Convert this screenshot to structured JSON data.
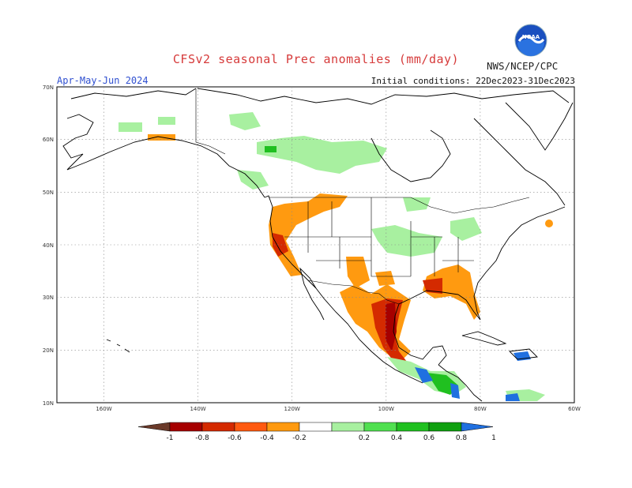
{
  "header": {
    "title": "CFSv2 seasonal Prec anomalies (mm/day)",
    "period": "Apr-May-Jun 2024",
    "initial_conditions": "Initial conditions: 22Dec2023-31Dec2023",
    "agency": "NWS/NCEP/CPC",
    "logo_text": "NOAA"
  },
  "map": {
    "lat_labels": [
      "70N",
      "60N",
      "50N",
      "40N",
      "30N",
      "20N",
      "10N"
    ],
    "lon_labels": [
      "160W",
      "140W",
      "120W",
      "100W",
      "80W",
      "60W"
    ],
    "lat_range": [
      10,
      70
    ],
    "lon_range": [
      -170,
      -60
    ]
  },
  "colorbar": {
    "labels": [
      "-1",
      "-0.8",
      "-0.6",
      "-0.4",
      "-0.2",
      "0.2",
      "0.4",
      "0.6",
      "0.8",
      "1"
    ],
    "colors": [
      "#6b3a2a",
      "#a60000",
      "#d42a00",
      "#ff5a10",
      "#ff9a10",
      "#ffffff",
      "#a8f0a0",
      "#50e050",
      "#20c020",
      "#10a010",
      "#2070e0"
    ]
  },
  "colors": {
    "border": "#000000",
    "grid": "#888888",
    "dry_strong": "#a60000",
    "dry": "#ff9a10",
    "wet": "#a8f0a0",
    "wet_strong": "#20c020",
    "very_wet": "#2070e0"
  }
}
